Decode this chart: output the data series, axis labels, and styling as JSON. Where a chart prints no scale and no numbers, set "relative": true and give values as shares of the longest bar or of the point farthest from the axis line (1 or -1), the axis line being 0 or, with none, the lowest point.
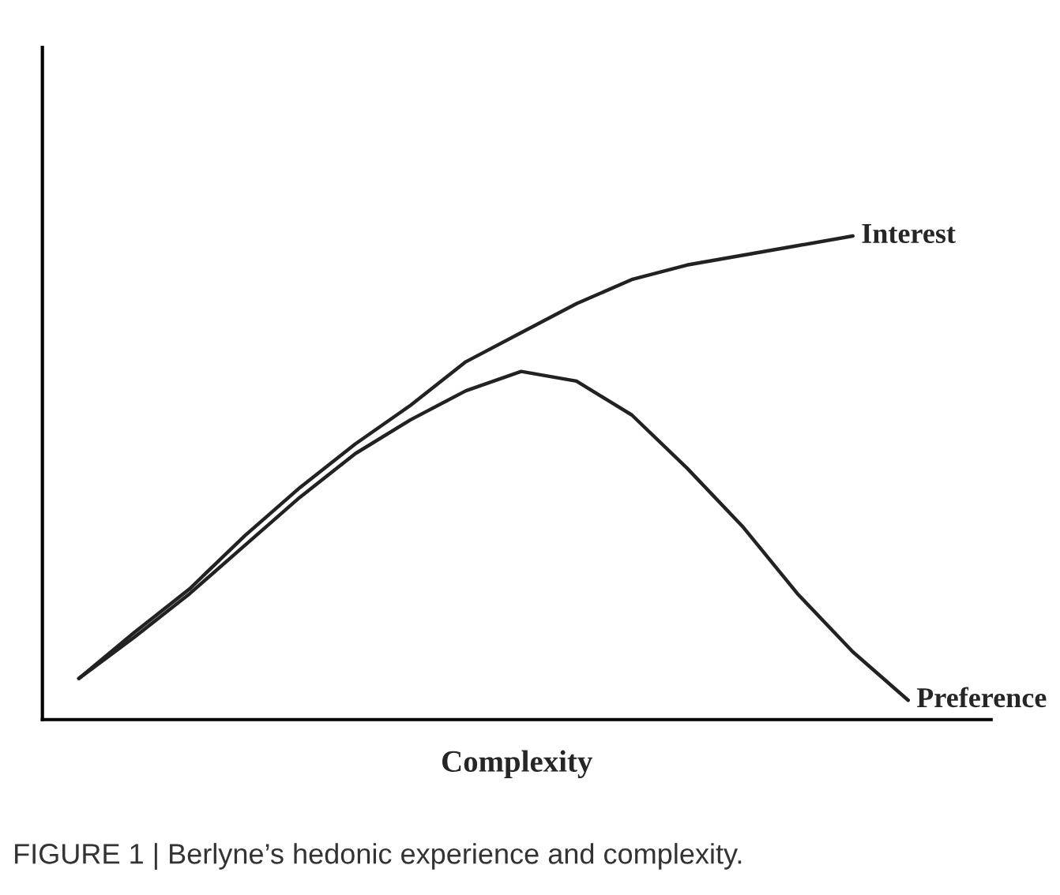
{
  "chart_data": {
    "type": "line",
    "relative": true,
    "xlabel": "Complexity",
    "categories": [
      null,
      null,
      null,
      null,
      null,
      null,
      null,
      null,
      null,
      null,
      null,
      null,
      null,
      null,
      null,
      null
    ],
    "series": [
      {
        "name": "Interest",
        "color": "#222222",
        "values": [
          0.085,
          0.18,
          0.27,
          0.38,
          0.48,
          0.57,
          0.65,
          0.74,
          0.8,
          0.86,
          0.91,
          0.94,
          0.96,
          0.98,
          1.0,
          null
        ]
      },
      {
        "name": "Preference",
        "color": "#222222",
        "values": [
          0.085,
          0.17,
          0.26,
          0.36,
          0.46,
          0.55,
          0.62,
          0.68,
          0.72,
          0.7,
          0.63,
          0.52,
          0.4,
          0.26,
          0.14,
          0.04
        ]
      }
    ],
    "annotations": [
      "FIGURE 1 | Berlyne’s hedonic experience and complexity."
    ],
    "tick_labels": false,
    "legend": false,
    "grid": false
  }
}
